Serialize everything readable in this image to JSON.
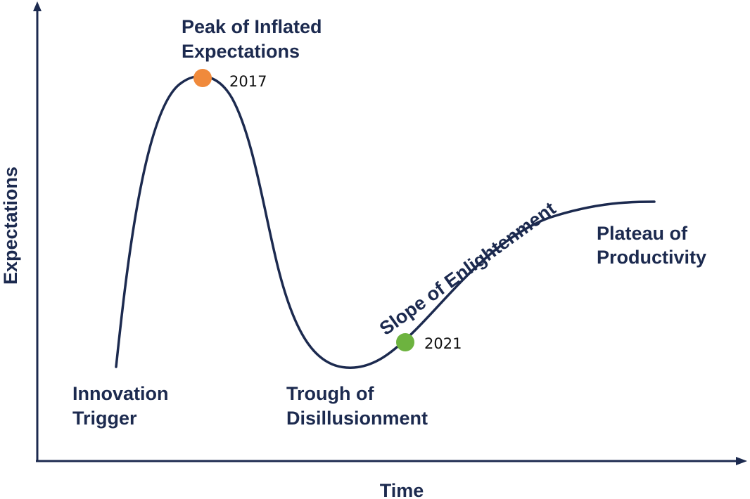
{
  "axes": {
    "y_label": "Expectations",
    "x_label": "Time"
  },
  "phases": [
    {
      "id": "innovation-trigger",
      "lines": [
        "Innovation",
        "Trigger"
      ]
    },
    {
      "id": "peak-of-inflated-expectations",
      "lines": [
        "Peak of Inflated",
        "Expectations"
      ]
    },
    {
      "id": "trough-of-disillusionment",
      "lines": [
        "Trough of",
        "Disillusionment"
      ]
    },
    {
      "id": "slope-of-enlightenment",
      "lines": [
        "Slope of Enlightenment"
      ]
    },
    {
      "id": "plateau-of-productivity",
      "lines": [
        "Plateau of",
        "Productivity"
      ]
    }
  ],
  "markers": [
    {
      "label": "2017",
      "color": "#f08a3c",
      "phase": "peak-of-inflated-expectations"
    },
    {
      "label": "2021",
      "color": "#6db33f",
      "phase": "slope-of-enlightenment"
    }
  ],
  "colors": {
    "ink": "#1c2a4f"
  }
}
